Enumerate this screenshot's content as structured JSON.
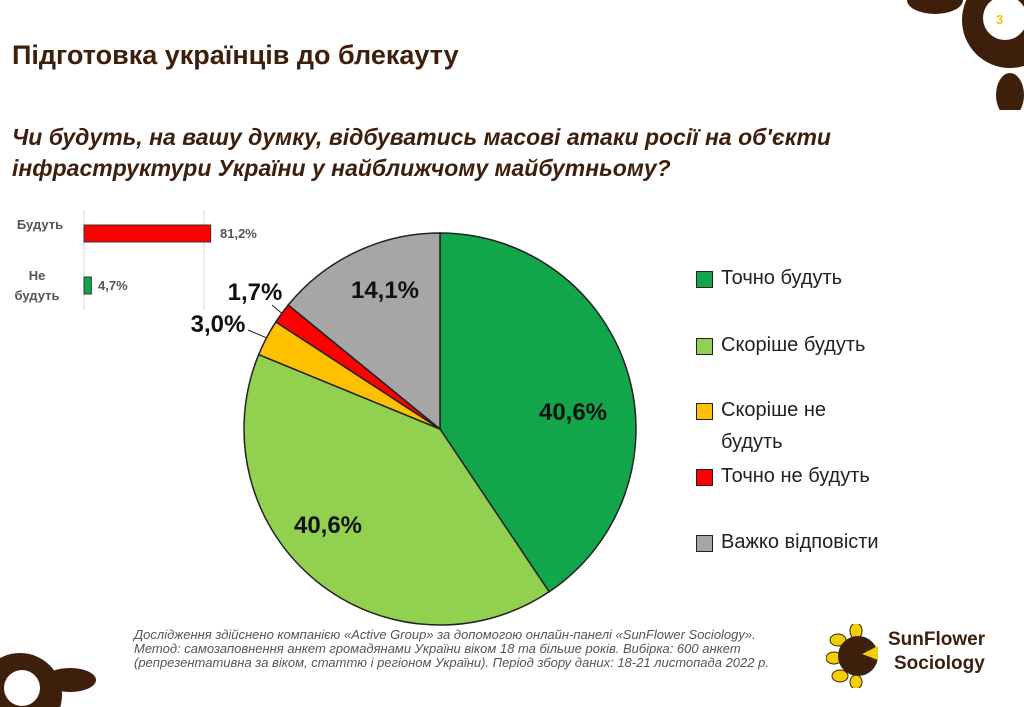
{
  "page_number": "3",
  "title": "Підготовка українців до блекауту",
  "question": "Чи будуть, на вашу думку, відбуватись масові атаки росії на об'єкти інфраструктури України у найближчому майбутньому?",
  "colors": {
    "dark_green": "#12a64b",
    "light_green": "#92d050",
    "yellow": "#ffc000",
    "red": "#ff0000",
    "gray": "#a6a6a6",
    "brown": "#3d1f0c"
  },
  "chart_data": [
    {
      "type": "bar",
      "orientation": "horizontal",
      "categories": [
        "Будуть",
        "Не будуть"
      ],
      "values": [
        81.2,
        4.7
      ],
      "value_labels": [
        "81,2%",
        "4,7%"
      ],
      "colors": [
        "#ff0000",
        "#12a64b"
      ],
      "xlim": [
        0,
        100
      ],
      "grid": true
    },
    {
      "type": "pie",
      "categories": [
        "Точно будуть",
        "Скоріше будуть",
        "Скоріше не будуть",
        "Точно не будуть",
        "Важко відповісти"
      ],
      "values": [
        40.6,
        40.6,
        3.0,
        1.7,
        14.1
      ],
      "value_labels": [
        "40,6%",
        "40,6%",
        "3,0%",
        "1,7%",
        "14,1%"
      ],
      "colors": [
        "#12a64b",
        "#92d050",
        "#ffc000",
        "#ff0000",
        "#a6a6a6"
      ],
      "start": "top",
      "direction": "clockwise",
      "legend": "right"
    }
  ],
  "footnote": "Дослідження здійснено компанією «Active Group» за допомогою онлайн-панелі «SunFlower Sociology». Метод: самозаповнення анкет громадянами України віком 18 та більше років. Вибірка: 600 анкет (репрезентативна за віком, статтю і регіоном України). Період збору даних: 18-21 листопада  2022 р.",
  "logo": {
    "line1": "SunFlower",
    "line2": "Sociology"
  }
}
